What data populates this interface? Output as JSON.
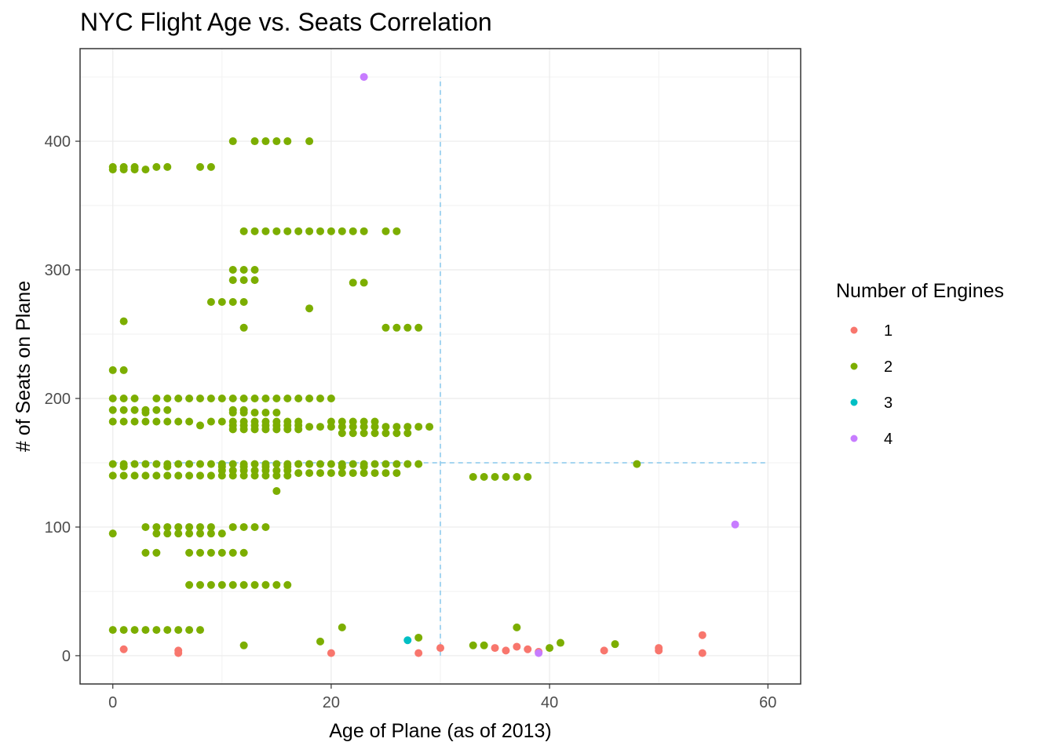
{
  "chart_data": {
    "type": "scatter",
    "title": "NYC Flight Age vs. Seats Correlation",
    "xlabel": "Age of Plane (as of 2013)",
    "ylabel": "# of Seats on Plane",
    "xlim": [
      -3,
      63
    ],
    "ylim": [
      -22,
      472
    ],
    "x_ticks": [
      0,
      20,
      40,
      60
    ],
    "y_ticks": [
      0,
      100,
      200,
      300,
      400
    ],
    "grid": true,
    "legend": {
      "title": "Number of Engines",
      "placement": "right",
      "entries": [
        "1",
        "2",
        "3",
        "4"
      ]
    },
    "reference_lines": [
      {
        "orientation": "vertical",
        "x": 30,
        "y_from": 0,
        "y_to": 450,
        "color": "#87C7EB",
        "style": "dashed"
      },
      {
        "orientation": "horizontal",
        "y": 150,
        "x_from": 0,
        "x_to": 60,
        "color": "#87C7EB",
        "style": "dashed"
      }
    ],
    "series": [
      {
        "name": "1",
        "color": "#F8766D",
        "points": [
          [
            1,
            5
          ],
          [
            6,
            2
          ],
          [
            6,
            4
          ],
          [
            20,
            2
          ],
          [
            28,
            2
          ],
          [
            30,
            6
          ],
          [
            35,
            6
          ],
          [
            36,
            4
          ],
          [
            37,
            7
          ],
          [
            38,
            5
          ],
          [
            39,
            3
          ],
          [
            45,
            4
          ],
          [
            50,
            4
          ],
          [
            50,
            6
          ],
          [
            54,
            2
          ],
          [
            54,
            16
          ]
        ]
      },
      {
        "name": "2",
        "color": "#7CAE00",
        "points": [
          [
            0,
            378
          ],
          [
            0,
            380
          ],
          [
            1,
            378
          ],
          [
            1,
            380
          ],
          [
            2,
            378
          ],
          [
            2,
            380
          ],
          [
            3,
            378
          ],
          [
            4,
            380
          ],
          [
            5,
            380
          ],
          [
            8,
            380
          ],
          [
            9,
            380
          ],
          [
            11,
            400
          ],
          [
            13,
            400
          ],
          [
            14,
            400
          ],
          [
            15,
            400
          ],
          [
            16,
            400
          ],
          [
            18,
            400
          ],
          [
            12,
            330
          ],
          [
            13,
            330
          ],
          [
            14,
            330
          ],
          [
            15,
            330
          ],
          [
            16,
            330
          ],
          [
            17,
            330
          ],
          [
            18,
            330
          ],
          [
            19,
            330
          ],
          [
            20,
            330
          ],
          [
            21,
            330
          ],
          [
            22,
            330
          ],
          [
            23,
            330
          ],
          [
            25,
            330
          ],
          [
            26,
            330
          ],
          [
            11,
            300
          ],
          [
            12,
            300
          ],
          [
            13,
            300
          ],
          [
            11,
            292
          ],
          [
            12,
            292
          ],
          [
            13,
            292
          ],
          [
            22,
            290
          ],
          [
            23,
            290
          ],
          [
            9,
            275
          ],
          [
            10,
            275
          ],
          [
            11,
            275
          ],
          [
            12,
            275
          ],
          [
            18,
            270
          ],
          [
            1,
            260
          ],
          [
            12,
            255
          ],
          [
            25,
            255
          ],
          [
            26,
            255
          ],
          [
            27,
            255
          ],
          [
            28,
            255
          ],
          [
            0,
            222
          ],
          [
            1,
            222
          ],
          [
            0,
            200
          ],
          [
            1,
            200
          ],
          [
            2,
            200
          ],
          [
            4,
            200
          ],
          [
            5,
            200
          ],
          [
            6,
            200
          ],
          [
            7,
            200
          ],
          [
            8,
            200
          ],
          [
            9,
            200
          ],
          [
            10,
            200
          ],
          [
            11,
            200
          ],
          [
            12,
            200
          ],
          [
            13,
            200
          ],
          [
            14,
            200
          ],
          [
            15,
            200
          ],
          [
            16,
            200
          ],
          [
            17,
            200
          ],
          [
            18,
            200
          ],
          [
            19,
            200
          ],
          [
            20,
            200
          ],
          [
            0,
            191
          ],
          [
            1,
            191
          ],
          [
            2,
            191
          ],
          [
            3,
            191
          ],
          [
            4,
            191
          ],
          [
            5,
            191
          ],
          [
            11,
            191
          ],
          [
            12,
            191
          ],
          [
            3,
            189
          ],
          [
            11,
            189
          ],
          [
            12,
            189
          ],
          [
            13,
            189
          ],
          [
            14,
            189
          ],
          [
            15,
            189
          ],
          [
            0,
            182
          ],
          [
            1,
            182
          ],
          [
            2,
            182
          ],
          [
            3,
            182
          ],
          [
            4,
            182
          ],
          [
            5,
            182
          ],
          [
            6,
            182
          ],
          [
            7,
            182
          ],
          [
            10,
            182
          ],
          [
            11,
            182
          ],
          [
            12,
            182
          ],
          [
            13,
            182
          ],
          [
            14,
            182
          ],
          [
            15,
            182
          ],
          [
            16,
            182
          ],
          [
            17,
            182
          ],
          [
            20,
            182
          ],
          [
            21,
            182
          ],
          [
            22,
            182
          ],
          [
            23,
            182
          ],
          [
            24,
            182
          ],
          [
            8,
            179
          ],
          [
            9,
            182
          ],
          [
            11,
            179
          ],
          [
            12,
            179
          ],
          [
            13,
            179
          ],
          [
            14,
            179
          ],
          [
            15,
            179
          ],
          [
            16,
            179
          ],
          [
            17,
            179
          ],
          [
            18,
            178
          ],
          [
            19,
            178
          ],
          [
            20,
            178
          ],
          [
            21,
            178
          ],
          [
            22,
            178
          ],
          [
            23,
            178
          ],
          [
            24,
            178
          ],
          [
            25,
            178
          ],
          [
            26,
            178
          ],
          [
            27,
            178
          ],
          [
            28,
            178
          ],
          [
            29,
            178
          ],
          [
            11,
            176
          ],
          [
            12,
            176
          ],
          [
            13,
            176
          ],
          [
            14,
            176
          ],
          [
            15,
            176
          ],
          [
            16,
            176
          ],
          [
            17,
            176
          ],
          [
            21,
            173
          ],
          [
            22,
            173
          ],
          [
            23,
            173
          ],
          [
            24,
            173
          ],
          [
            25,
            173
          ],
          [
            26,
            173
          ],
          [
            27,
            173
          ],
          [
            0,
            149
          ],
          [
            1,
            149
          ],
          [
            2,
            149
          ],
          [
            3,
            149
          ],
          [
            4,
            149
          ],
          [
            5,
            149
          ],
          [
            6,
            149
          ],
          [
            7,
            149
          ],
          [
            8,
            149
          ],
          [
            9,
            149
          ],
          [
            10,
            149
          ],
          [
            11,
            149
          ],
          [
            12,
            149
          ],
          [
            13,
            149
          ],
          [
            14,
            149
          ],
          [
            15,
            149
          ],
          [
            16,
            149
          ],
          [
            17,
            149
          ],
          [
            18,
            149
          ],
          [
            19,
            149
          ],
          [
            20,
            149
          ],
          [
            21,
            149
          ],
          [
            22,
            149
          ],
          [
            23,
            149
          ],
          [
            24,
            149
          ],
          [
            25,
            149
          ],
          [
            26,
            149
          ],
          [
            27,
            149
          ],
          [
            28,
            149
          ],
          [
            48,
            149
          ],
          [
            1,
            147
          ],
          [
            5,
            147
          ],
          [
            10,
            147
          ],
          [
            12,
            147
          ],
          [
            14,
            147
          ],
          [
            16,
            147
          ],
          [
            21,
            147
          ],
          [
            23,
            147
          ],
          [
            10,
            144
          ],
          [
            11,
            144
          ],
          [
            12,
            144
          ],
          [
            13,
            144
          ],
          [
            14,
            144
          ],
          [
            15,
            144
          ],
          [
            16,
            144
          ],
          [
            0,
            140
          ],
          [
            1,
            140
          ],
          [
            2,
            140
          ],
          [
            3,
            140
          ],
          [
            4,
            140
          ],
          [
            5,
            140
          ],
          [
            6,
            140
          ],
          [
            7,
            140
          ],
          [
            8,
            140
          ],
          [
            9,
            140
          ],
          [
            10,
            140
          ],
          [
            11,
            140
          ],
          [
            12,
            140
          ],
          [
            13,
            140
          ],
          [
            14,
            140
          ],
          [
            15,
            140
          ],
          [
            16,
            140
          ],
          [
            17,
            142
          ],
          [
            18,
            142
          ],
          [
            19,
            142
          ],
          [
            20,
            142
          ],
          [
            21,
            142
          ],
          [
            22,
            142
          ],
          [
            23,
            142
          ],
          [
            24,
            142
          ],
          [
            25,
            142
          ],
          [
            26,
            142
          ],
          [
            33,
            139
          ],
          [
            34,
            139
          ],
          [
            35,
            139
          ],
          [
            36,
            139
          ],
          [
            37,
            139
          ],
          [
            38,
            139
          ],
          [
            15,
            128
          ],
          [
            3,
            100
          ],
          [
            4,
            100
          ],
          [
            5,
            100
          ],
          [
            6,
            100
          ],
          [
            7,
            100
          ],
          [
            8,
            100
          ],
          [
            9,
            100
          ],
          [
            11,
            100
          ],
          [
            12,
            100
          ],
          [
            13,
            100
          ],
          [
            14,
            100
          ],
          [
            0,
            95
          ],
          [
            4,
            95
          ],
          [
            5,
            95
          ],
          [
            6,
            95
          ],
          [
            7,
            95
          ],
          [
            8,
            95
          ],
          [
            9,
            95
          ],
          [
            10,
            95
          ],
          [
            3,
            80
          ],
          [
            4,
            80
          ],
          [
            7,
            80
          ],
          [
            8,
            80
          ],
          [
            9,
            80
          ],
          [
            10,
            80
          ],
          [
            11,
            80
          ],
          [
            12,
            80
          ],
          [
            7,
            55
          ],
          [
            8,
            55
          ],
          [
            9,
            55
          ],
          [
            10,
            55
          ],
          [
            11,
            55
          ],
          [
            12,
            55
          ],
          [
            13,
            55
          ],
          [
            14,
            55
          ],
          [
            15,
            55
          ],
          [
            16,
            55
          ],
          [
            0,
            20
          ],
          [
            1,
            20
          ],
          [
            2,
            20
          ],
          [
            3,
            20
          ],
          [
            4,
            20
          ],
          [
            5,
            20
          ],
          [
            6,
            20
          ],
          [
            7,
            20
          ],
          [
            8,
            20
          ],
          [
            12,
            8
          ],
          [
            19,
            11
          ],
          [
            21,
            22
          ],
          [
            28,
            14
          ],
          [
            33,
            8
          ],
          [
            34,
            8
          ],
          [
            37,
            22
          ],
          [
            40,
            6
          ],
          [
            41,
            10
          ],
          [
            46,
            9
          ]
        ]
      },
      {
        "name": "3",
        "color": "#00BFC4",
        "points": [
          [
            27,
            12
          ]
        ]
      },
      {
        "name": "4",
        "color": "#C77CFF",
        "points": [
          [
            23,
            450
          ],
          [
            39,
            2
          ],
          [
            57,
            102
          ]
        ]
      }
    ]
  }
}
